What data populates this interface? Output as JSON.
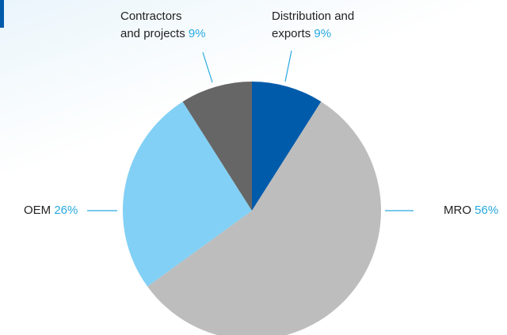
{
  "chart_data": {
    "type": "pie",
    "categories": [
      "Distribution and\nexports",
      "MRO",
      "OEM",
      "Contractors\nand projects"
    ],
    "values": [
      9,
      56,
      26,
      9
    ],
    "value_labels": [
      "9%",
      "56%",
      "26%",
      "9%"
    ],
    "colors": [
      "#005bab",
      "#bdbdbd",
      "#82d0f5",
      "#666666"
    ]
  }
}
